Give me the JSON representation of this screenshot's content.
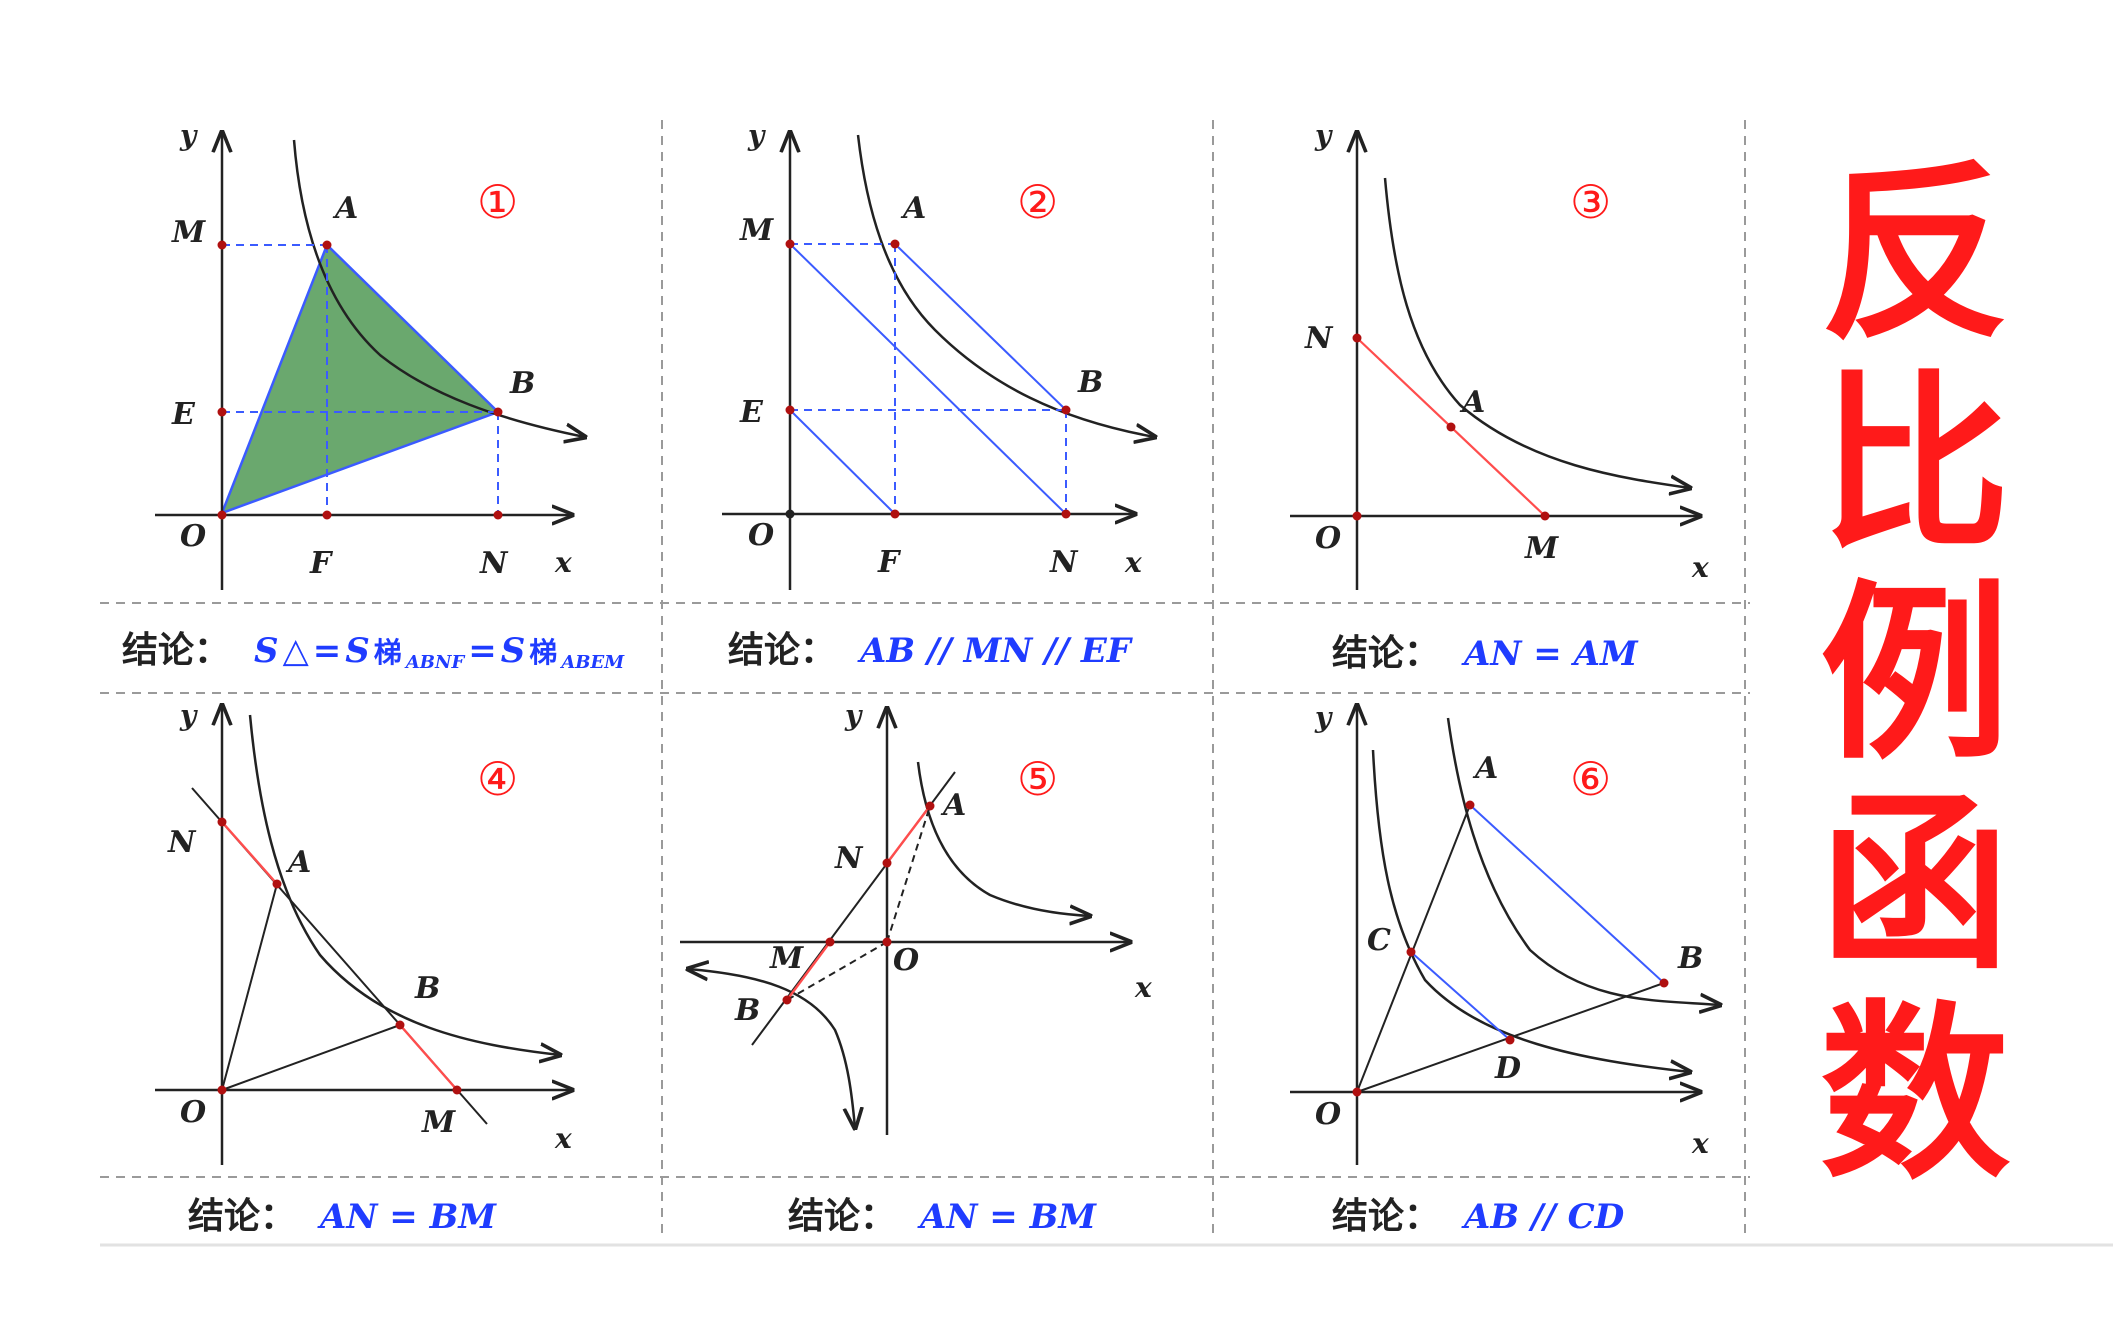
{
  "title": {
    "chars": [
      "反",
      "比",
      "例",
      "函",
      "数"
    ],
    "color": "#ff1a1a"
  },
  "colors": {
    "curve": "#222222",
    "blue": "#3b5bff",
    "red_segment": "#ff4d4d",
    "fill_green": "#6aa86e",
    "point": "#b01010"
  },
  "conclusion_prefix": "结论：",
  "panels": [
    {
      "number": "①",
      "labels": {
        "y": "y",
        "x": "x",
        "O": "O",
        "M": "M",
        "E": "E",
        "A": "A",
        "B": "B",
        "F": "F",
        "N": "N"
      },
      "conclusion": {
        "s1": "S",
        "tri": "△",
        "eq1": "=",
        "s2": "S",
        "ti2": "梯",
        "sub2": "ABNF",
        "eq2": "=",
        "s3": "S",
        "ti3": "梯",
        "sub3": "ABEM"
      }
    },
    {
      "number": "②",
      "labels": {
        "y": "y",
        "x": "x",
        "O": "O",
        "M": "M",
        "E": "E",
        "A": "A",
        "B": "B",
        "F": "F",
        "N": "N"
      },
      "conclusion": "AB // MN // EF"
    },
    {
      "number": "③",
      "labels": {
        "y": "y",
        "x": "x",
        "O": "O",
        "N": "N",
        "A": "A",
        "M": "M"
      },
      "conclusion": "AN = AM"
    },
    {
      "number": "④",
      "labels": {
        "y": "y",
        "x": "x",
        "O": "O",
        "N": "N",
        "A": "A",
        "B": "B",
        "M": "M"
      },
      "conclusion": "AN = BM"
    },
    {
      "number": "⑤",
      "labels": {
        "y": "y",
        "x": "x",
        "O": "O",
        "N": "N",
        "A": "A",
        "M": "M",
        "B": "B"
      },
      "conclusion": "AN = BM"
    },
    {
      "number": "⑥",
      "labels": {
        "y": "y",
        "x": "x",
        "O": "O",
        "A": "A",
        "B": "B",
        "C": "C",
        "D": "D"
      },
      "conclusion": "AB // CD"
    }
  ]
}
